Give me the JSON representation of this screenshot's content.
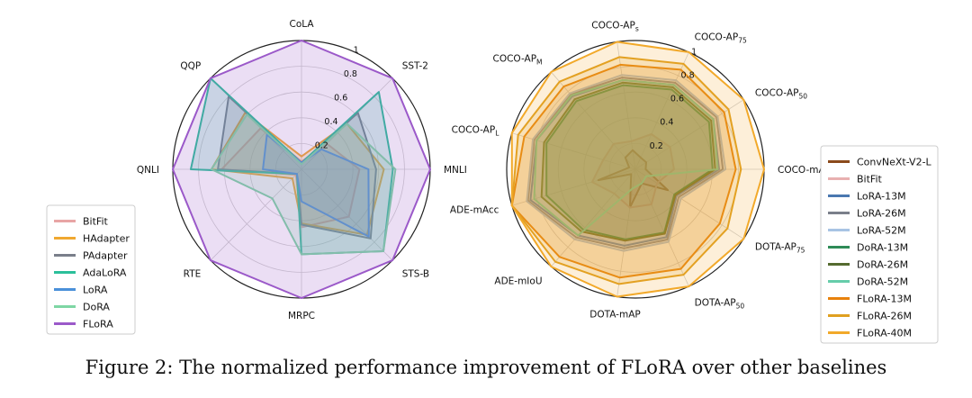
{
  "caption": "Figure 2: The normalized performance improvement of FLoRA over other baselines",
  "chart_data": [
    {
      "type": "radar",
      "axes": [
        "MNLI",
        "SST-2",
        "CoLA",
        "QQP",
        "QNLI",
        "RTE",
        "MRPC",
        "STS-B"
      ],
      "rlim": [
        0,
        1.0
      ],
      "rticks": [
        0.2,
        0.4,
        0.6,
        0.8,
        1.0
      ],
      "grid": true,
      "legend": "bottom-left",
      "series": [
        {
          "name": "BitFit",
          "color": "#e8a5a5",
          "values": [
            0.45,
            0.28,
            0.06,
            0.45,
            0.62,
            0.06,
            0.45,
            0.52
          ]
        },
        {
          "name": "HAdapter",
          "color": "#f0a830",
          "values": [
            0.64,
            0.5,
            0.1,
            0.62,
            0.7,
            0.1,
            0.42,
            0.72
          ]
        },
        {
          "name": "PAdapter",
          "color": "#7a7f8a",
          "values": [
            0.58,
            0.62,
            0.05,
            0.8,
            0.65,
            0.05,
            0.43,
            0.76
          ]
        },
        {
          "name": "AdaLoRA",
          "color": "#2bbf9a",
          "values": [
            0.71,
            0.85,
            0.05,
            1.0,
            0.86,
            0.05,
            0.66,
            0.9
          ]
        },
        {
          "name": "LoRA",
          "color": "#4a90d9",
          "values": [
            0.52,
            0.22,
            0.05,
            0.38,
            0.3,
            0.05,
            0.25,
            0.74
          ]
        },
        {
          "name": "DoRA",
          "color": "#7ed6a4",
          "values": [
            0.73,
            0.5,
            0.04,
            0.6,
            0.7,
            0.32,
            0.66,
            0.9
          ]
        },
        {
          "name": "FLoRA",
          "color": "#9b59c9",
          "values": [
            1.0,
            1.0,
            1.0,
            1.0,
            1.0,
            1.0,
            1.0,
            1.0
          ]
        }
      ]
    },
    {
      "type": "radar",
      "axes": [
        "COCO-mAP",
        "COCO-AP50",
        "COCO-AP75",
        "COCO-APs",
        "COCO-APM",
        "COCO-APL",
        "ADE-mAcc",
        "ADE-mIoU",
        "DOTA-mAP",
        "DOTA-AP50",
        "DOTA-AP75"
      ],
      "axis_subscripts": [
        "",
        "50",
        "75",
        "s",
        "M",
        "L",
        "",
        "",
        "",
        "50",
        "75"
      ],
      "axis_base": [
        "COCO-mAP",
        "COCO-AP",
        "COCO-AP",
        "COCO-AP",
        "COCO-AP",
        "COCO-AP",
        "ADE-mAcc",
        "ADE-mIoU",
        "DOTA-mAP",
        "DOTA-AP",
        "DOTA-AP"
      ],
      "rlim": [
        0,
        1.0
      ],
      "rticks": [
        0.2,
        0.4,
        0.6,
        0.8,
        1.0
      ],
      "grid": true,
      "legend": "right",
      "series": [
        {
          "name": "ConvNeXt-V2-L",
          "color": "#8b4a1c",
          "values": [
            0.08,
            0.1,
            0.1,
            0.15,
            0.12,
            0.05,
            0.3,
            0.05,
            0.3,
            0.12,
            0.3
          ]
        },
        {
          "name": "BitFit",
          "color": "#e8b0b0",
          "values": [
            0.3,
            0.32,
            0.3,
            0.22,
            0.26,
            0.26,
            0.35,
            0.25,
            0.3,
            0.3,
            0.2
          ]
        },
        {
          "name": "LoRA-13M",
          "color": "#4a78b0",
          "values": [
            0.65,
            0.72,
            0.72,
            0.7,
            0.75,
            0.8,
            0.85,
            0.68,
            0.6,
            0.58,
            0.38
          ]
        },
        {
          "name": "LoRA-26M",
          "color": "#7a7f8a",
          "values": [
            0.68,
            0.75,
            0.74,
            0.72,
            0.77,
            0.82,
            0.87,
            0.7,
            0.62,
            0.6,
            0.4
          ]
        },
        {
          "name": "LoRA-52M",
          "color": "#a8c4e4",
          "values": [
            0.7,
            0.76,
            0.76,
            0.74,
            0.78,
            0.83,
            0.88,
            0.72,
            0.64,
            0.62,
            0.42
          ]
        },
        {
          "name": "DoRA-13M",
          "color": "#2e8b57",
          "values": [
            0.6,
            0.68,
            0.68,
            0.66,
            0.7,
            0.72,
            0.72,
            0.62,
            0.55,
            0.54,
            0.36
          ]
        },
        {
          "name": "DoRA-26M",
          "color": "#556b2f",
          "values": [
            0.62,
            0.7,
            0.7,
            0.68,
            0.72,
            0.74,
            0.76,
            0.64,
            0.56,
            0.55,
            0.37
          ]
        },
        {
          "name": "DoRA-52M",
          "color": "#66cdaa",
          "values": [
            0.64,
            0.72,
            0.72,
            0.7,
            0.76,
            0.8,
            0.82,
            0.68,
            0.15,
            0.12,
            0.1
          ]
        },
        {
          "name": "FLoRA-13M",
          "color": "#e8820c",
          "values": [
            0.78,
            0.82,
            0.85,
            0.82,
            0.85,
            0.9,
            1.0,
            0.9,
            0.85,
            0.85,
            0.78
          ]
        },
        {
          "name": "FLoRA-26M",
          "color": "#e0a020",
          "values": [
            0.82,
            0.86,
            0.9,
            0.88,
            0.9,
            0.95,
            1.0,
            0.95,
            0.9,
            0.9,
            0.85
          ]
        },
        {
          "name": "FLoRA-40M",
          "color": "#f2a92a",
          "values": [
            1.0,
            1.0,
            1.0,
            1.0,
            1.0,
            1.0,
            1.0,
            1.0,
            1.0,
            1.0,
            1.0
          ]
        }
      ]
    }
  ]
}
